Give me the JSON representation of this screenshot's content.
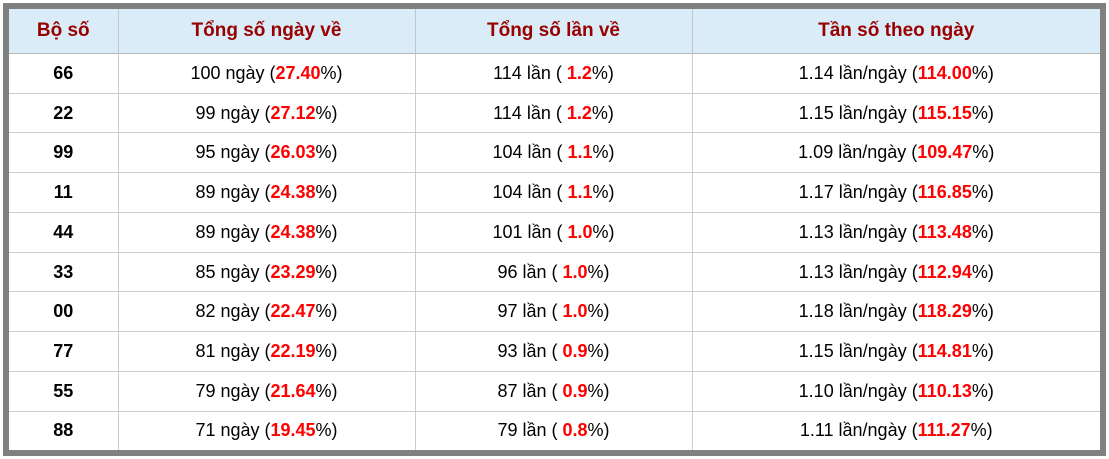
{
  "table": {
    "columns": [
      {
        "label": "Bộ số"
      },
      {
        "label": "Tổng số ngày về"
      },
      {
        "label": "Tổng số lần về"
      },
      {
        "label": "Tần số theo ngày"
      }
    ],
    "rows": [
      {
        "pair": "66",
        "days": {
          "pre": "100 ngày (",
          "red": "27.40",
          "post": "%)"
        },
        "times": {
          "pre": "114 lần ( ",
          "red": "1.2",
          "post": "%)"
        },
        "freq": {
          "pre": "1.14 lần/ngày (",
          "red": "114.00",
          "post": "%)"
        }
      },
      {
        "pair": "22",
        "days": {
          "pre": "99 ngày (",
          "red": "27.12",
          "post": "%)"
        },
        "times": {
          "pre": "114 lần ( ",
          "red": "1.2",
          "post": "%)"
        },
        "freq": {
          "pre": "1.15 lần/ngày (",
          "red": "115.15",
          "post": "%)"
        }
      },
      {
        "pair": "99",
        "days": {
          "pre": "95 ngày (",
          "red": "26.03",
          "post": "%)"
        },
        "times": {
          "pre": "104 lần ( ",
          "red": "1.1",
          "post": "%)"
        },
        "freq": {
          "pre": "1.09 lần/ngày (",
          "red": "109.47",
          "post": "%)"
        }
      },
      {
        "pair": "11",
        "days": {
          "pre": "89 ngày (",
          "red": "24.38",
          "post": "%)"
        },
        "times": {
          "pre": "104 lần ( ",
          "red": "1.1",
          "post": "%)"
        },
        "freq": {
          "pre": "1.17 lần/ngày (",
          "red": "116.85",
          "post": "%)"
        }
      },
      {
        "pair": "44",
        "days": {
          "pre": "89 ngày (",
          "red": "24.38",
          "post": "%)"
        },
        "times": {
          "pre": "101 lần ( ",
          "red": "1.0",
          "post": "%)"
        },
        "freq": {
          "pre": "1.13 lần/ngày (",
          "red": "113.48",
          "post": "%)"
        }
      },
      {
        "pair": "33",
        "days": {
          "pre": "85 ngày (",
          "red": "23.29",
          "post": "%)"
        },
        "times": {
          "pre": "96 lần ( ",
          "red": "1.0",
          "post": "%)"
        },
        "freq": {
          "pre": "1.13 lần/ngày (",
          "red": "112.94",
          "post": "%)"
        }
      },
      {
        "pair": "00",
        "days": {
          "pre": "82 ngày (",
          "red": "22.47",
          "post": "%)"
        },
        "times": {
          "pre": "97 lần ( ",
          "red": "1.0",
          "post": "%)"
        },
        "freq": {
          "pre": "1.18 lần/ngày (",
          "red": "118.29",
          "post": "%)"
        }
      },
      {
        "pair": "77",
        "days": {
          "pre": "81 ngày (",
          "red": "22.19",
          "post": "%)"
        },
        "times": {
          "pre": "93 lần ( ",
          "red": "0.9",
          "post": "%)"
        },
        "freq": {
          "pre": "1.15 lần/ngày (",
          "red": "114.81",
          "post": "%)"
        }
      },
      {
        "pair": "55",
        "days": {
          "pre": "79 ngày (",
          "red": "21.64",
          "post": "%)"
        },
        "times": {
          "pre": "87 lần ( ",
          "red": "0.9",
          "post": "%)"
        },
        "freq": {
          "pre": "1.10 lần/ngày (",
          "red": "110.13",
          "post": "%)"
        }
      },
      {
        "pair": "88",
        "days": {
          "pre": "71 ngày (",
          "red": "19.45",
          "post": "%)"
        },
        "times": {
          "pre": "79 lần ( ",
          "red": "0.8",
          "post": "%)"
        },
        "freq": {
          "pre": "1.11 lần/ngày (",
          "red": "111.27",
          "post": "%)"
        }
      }
    ]
  },
  "colors": {
    "frame_gray": "#808080",
    "header_bg": "#d9ecf8",
    "header_text": "#990000",
    "highlight_red": "#ff0000",
    "divider": "#cccccc"
  }
}
